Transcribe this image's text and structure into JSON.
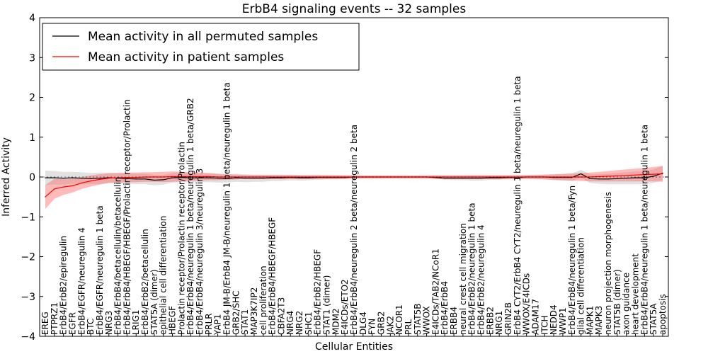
{
  "chart_data": {
    "type": "line",
    "title": "ErbB4 signaling events -- 32 samples",
    "xlabel": "Cellular Entities",
    "ylabel": "Inferred Activity",
    "ylim": [
      -4,
      4
    ],
    "yticks": [
      -4,
      -3,
      -2,
      -1,
      0,
      1,
      2,
      3,
      4
    ],
    "ytick_labels": [
      "−4",
      "−3",
      "−2",
      "−1",
      "0",
      "1",
      "2",
      "3",
      "4"
    ],
    "grid": false,
    "legend_position": "top-left",
    "categories": [
      "EREG",
      "PTPRZ1",
      "ErbB4/ErbB2/epiregulin",
      "EGFR",
      "ErbB4/EGFR/neuregulin 4",
      "BTC",
      "ErbB4/EGFR/neuregulin 1 beta",
      "NRG3",
      "ErbB4/ErbB4/betacellulin/betacellulin",
      "ErbB4/ErbB4/HBEGF/HBEGF/Prolactin receptor/Prolactin",
      "LRIG1",
      "ErbB4/ErbB2/betacellulin",
      "STAT5A (dimer)",
      "epithelial cell differentiation",
      "HBEGF",
      "Prolactin receptor/Prolactin receptor/Prolactin",
      "ErbB4/ErbB4/neuregulin 1 beta/neuregulin 1 beta/GRB2",
      "ErbB4/ErbB4/neuregulin 3/neuregulin 3",
      "PRLR",
      "YAP1",
      "ErbB4 JM-B/ErbB4 JM-B/neuregulin 1 beta/neuregulin 1 beta",
      "GRB2/SHC",
      "STAT1",
      "MAP3K7IP2",
      "cell proliferation",
      "ErbB4/ErbB4/HBEGF/HBEGF",
      "CBFA2T3",
      "NRG4",
      "NRG2",
      "SHC1",
      "ErbB4/ErbB2/HBEGF",
      "STAT1 (dimer)",
      "MDM2",
      "E4ICDs/ETO2",
      "ErbB4/ErbB4/neuregulin 2 beta/neuregulin 2 beta",
      "DLG4",
      "FYN",
      "GRB2",
      "JAK2",
      "NCOR1",
      "PRL",
      "STAT5B",
      "WWOX",
      "E4ICDs/TAB2/NCoR1",
      "ErbB4/ErbB4",
      "ERBB4",
      "neural crest cell migration",
      "ErbB4/ErbB2/neuregulin 1 beta",
      "ErbB4/ErbB2/neuregulin 4",
      "ERBB2",
      "NRG1",
      "GRIN2B",
      "ErbB4 CYT2/ErbB4 CYT2/neuregulin 1 beta/neuregulin 1 beta",
      "WWOX/E4ICDs",
      "ADAM17",
      "ITCH",
      "NEDD4",
      "WWP1",
      "ErbB4/ErbB4/neuregulin 1 beta/Fyn",
      "glial cell differentiation",
      "MAPK1",
      "MAPK3",
      "neuron projection morphogenesis",
      "STAT5B (dimer)",
      "axon guidance",
      "heart development",
      "ErbB4/ErbB4/neuregulin 1 beta/neuregulin 1 beta",
      "STAT5A",
      "apoptosis"
    ],
    "series": [
      {
        "name": "Mean activity in all permuted samples",
        "color": "#000000",
        "values": [
          -0.02,
          -0.02,
          -0.03,
          -0.02,
          -0.03,
          -0.04,
          -0.03,
          -0.02,
          -0.03,
          -0.04,
          -0.05,
          -0.05,
          -0.08,
          -0.07,
          -0.02,
          -0.01,
          -0.02,
          -0.02,
          -0.02,
          -0.03,
          -0.04,
          -0.02,
          -0.03,
          -0.03,
          -0.03,
          -0.02,
          -0.02,
          -0.01,
          -0.02,
          -0.02,
          -0.01,
          -0.01,
          -0.01,
          -0.01,
          0.0,
          0.0,
          0.0,
          0.0,
          0.0,
          0.0,
          0.0,
          0.0,
          0.0,
          -0.01,
          -0.03,
          -0.03,
          -0.03,
          -0.03,
          -0.03,
          -0.02,
          -0.02,
          -0.01,
          -0.01,
          0.0,
          0.0,
          0.0,
          -0.01,
          -0.01,
          -0.01,
          0.08,
          -0.04,
          -0.05,
          -0.05,
          -0.04,
          -0.03,
          -0.02,
          -0.02,
          0.02,
          0.1
        ]
      },
      {
        "name": "Mean activity in patient samples",
        "color": "#ff0000",
        "values": [
          -0.5,
          -0.3,
          -0.25,
          -0.22,
          -0.15,
          -0.1,
          -0.06,
          -0.03,
          -0.02,
          -0.01,
          -0.01,
          0.0,
          0.0,
          0.0,
          0.01,
          0.01,
          0.01,
          0.01,
          0.01,
          0.0,
          0.0,
          0.0,
          0.0,
          0.0,
          0.0,
          0.0,
          0.0,
          0.0,
          0.0,
          0.0,
          0.0,
          0.0,
          0.0,
          0.0,
          0.0,
          0.0,
          0.0,
          0.0,
          0.0,
          0.0,
          0.0,
          0.0,
          0.0,
          0.0,
          0.0,
          0.0,
          0.0,
          0.0,
          0.0,
          0.0,
          0.0,
          0.0,
          0.0,
          0.0,
          0.0,
          0.0,
          0.0,
          0.0,
          0.0,
          0.0,
          0.0,
          0.01,
          0.02,
          0.03,
          0.04,
          0.05,
          0.06,
          0.07,
          0.08
        ]
      }
    ],
    "bands": [
      {
        "name": "permuted spread",
        "color": "#aaaaaa",
        "half_width": [
          0.18,
          0.17,
          0.16,
          0.15,
          0.15,
          0.14,
          0.14,
          0.13,
          0.13,
          0.13,
          0.13,
          0.13,
          0.13,
          0.12,
          0.12,
          0.12,
          0.11,
          0.11,
          0.11,
          0.11,
          0.1,
          0.1,
          0.1,
          0.09,
          0.09,
          0.08,
          0.08,
          0.07,
          0.07,
          0.06,
          0.06,
          0.05,
          0.05,
          0.04,
          0.04,
          0.03,
          0.03,
          0.03,
          0.03,
          0.03,
          0.03,
          0.03,
          0.03,
          0.04,
          0.04,
          0.05,
          0.05,
          0.06,
          0.06,
          0.05,
          0.05,
          0.05,
          0.05,
          0.05,
          0.06,
          0.06,
          0.07,
          0.08,
          0.09,
          0.1,
          0.11,
          0.12,
          0.13,
          0.14,
          0.15,
          0.16,
          0.16,
          0.17,
          0.18
        ]
      },
      {
        "name": "patient spread",
        "color": "#ff6666",
        "half_width": [
          0.3,
          0.25,
          0.2,
          0.17,
          0.15,
          0.14,
          0.13,
          0.12,
          0.12,
          0.12,
          0.12,
          0.12,
          0.12,
          0.13,
          0.13,
          0.12,
          0.11,
          0.1,
          0.09,
          0.08,
          0.07,
          0.06,
          0.05,
          0.05,
          0.05,
          0.05,
          0.05,
          0.05,
          0.05,
          0.05,
          0.05,
          0.05,
          0.05,
          0.05,
          0.04,
          0.04,
          0.04,
          0.04,
          0.04,
          0.04,
          0.04,
          0.04,
          0.04,
          0.05,
          0.05,
          0.05,
          0.05,
          0.05,
          0.05,
          0.05,
          0.05,
          0.05,
          0.05,
          0.05,
          0.05,
          0.06,
          0.07,
          0.08,
          0.09,
          0.1,
          0.11,
          0.12,
          0.13,
          0.14,
          0.15,
          0.16,
          0.17,
          0.18,
          0.2
        ]
      }
    ]
  }
}
